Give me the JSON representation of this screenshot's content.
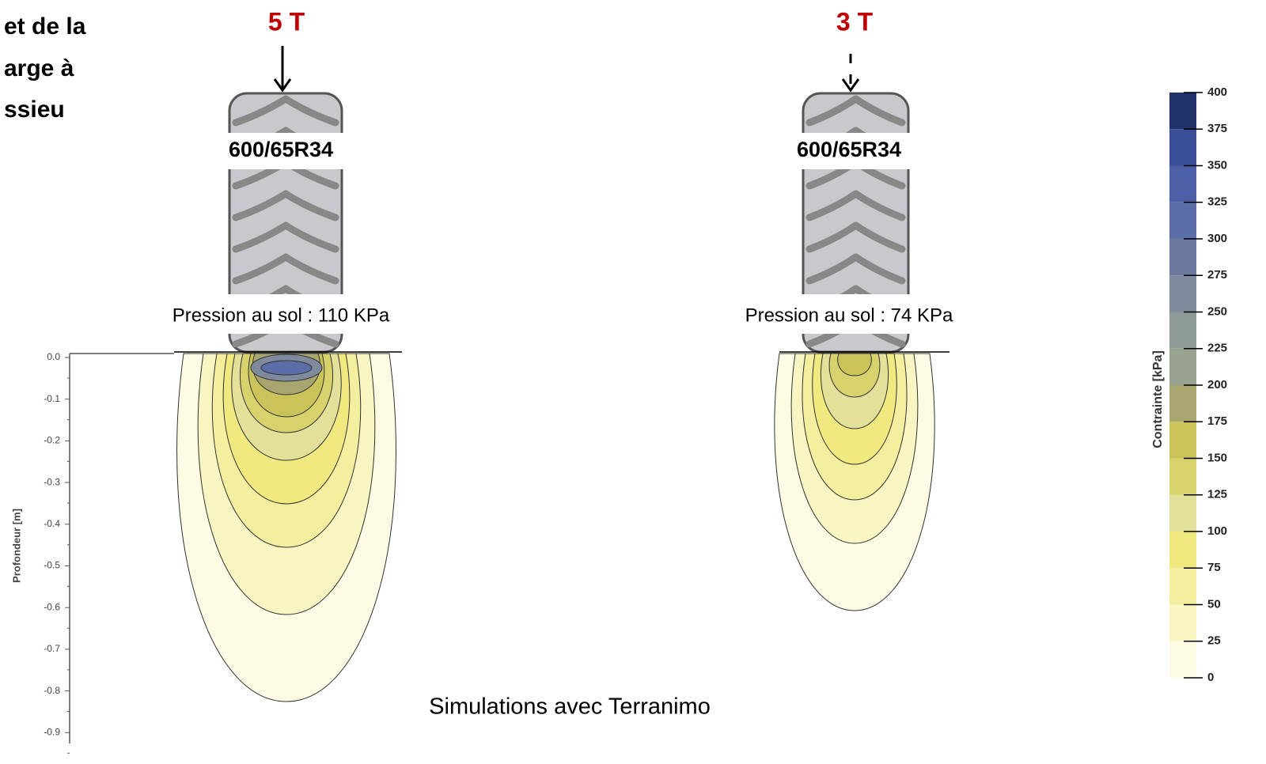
{
  "title_lines": [
    "et de la",
    "arge à",
    "ssieu"
  ],
  "caption": "Simulations avec Terranimo",
  "depth_axis": {
    "label": "Profondeur [m]",
    "ticks": [
      "0.0",
      "-0.1",
      "-0.2",
      "-0.3",
      "-0.4",
      "-0.5",
      "-0.6",
      "-0.7",
      "-0.8",
      "-0.9"
    ]
  },
  "colorbar": {
    "label": "Contrainte [kPa]",
    "ticks": [
      400,
      375,
      350,
      325,
      300,
      275,
      250,
      225,
      200,
      175,
      150,
      125,
      100,
      75,
      50,
      25,
      0
    ],
    "colors": [
      "#1f3368",
      "#3a4f98",
      "#4d5fa6",
      "#5c6ea8",
      "#6c7aa0",
      "#7f8a9c",
      "#8e9a96",
      "#9aa38f",
      "#a9a56e",
      "#c9c35a",
      "#d8d26c",
      "#e3e09a",
      "#efe97f",
      "#f4ef9e",
      "#f9f5c2",
      "#fdfbe4"
    ]
  },
  "panels": [
    {
      "load": "5 T",
      "tire": "600/65R34",
      "pressure": "Pression au sol : 110 KPa"
    },
    {
      "load": "3 T",
      "tire": "600/65R34",
      "pressure": "Pression au sol : 74 KPa"
    }
  ]
}
